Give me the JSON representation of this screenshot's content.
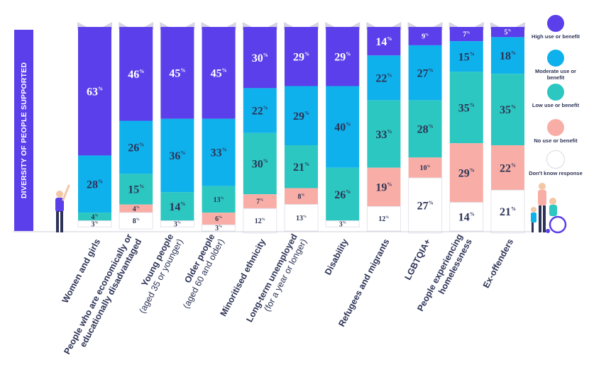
{
  "title": "DIVERSITY OF PEOPLE SUPPORTED",
  "colors": {
    "high": "#5b3fea",
    "moderate": "#0fb1ec",
    "low": "#2cc7c0",
    "no": "#f8aea6",
    "dontknow": "#ffffff",
    "cap": "#d6d3e4",
    "label": "#2d3356"
  },
  "legend": [
    {
      "key": "high",
      "label": "High use or benefit"
    },
    {
      "key": "moderate",
      "label": "Moderate use or benefit"
    },
    {
      "key": "low",
      "label": "Low use or benefit"
    },
    {
      "key": "no",
      "label": "No use or benefit"
    },
    {
      "key": "dontknow",
      "label": "Don't know response"
    }
  ],
  "chart_data": {
    "type": "bar",
    "stacked": true,
    "percent": true,
    "categories": [
      "Women and girls",
      "People who are economically or educationally disadvantaged",
      "Young people (aged 35 or younger)",
      "Older people (aged 60 and older)",
      "Minoritised ethnicity",
      "Long-term unemployed (for a year or longer)",
      "Disability",
      "Refugees and migrants",
      "LGBTQIA+",
      "People experiencing homelessness",
      "Ex-offenders"
    ],
    "category_lines": [
      [
        {
          "t": "Women and girls",
          "bold": true
        }
      ],
      [
        {
          "t": "People who are economically or",
          "bold": true
        },
        {
          "t": "educationally disadvantaged",
          "bold": true
        }
      ],
      [
        {
          "t": "Young people",
          "bold": true
        },
        {
          "t": "(aged 35 or younger)",
          "bold": false
        }
      ],
      [
        {
          "t": "Older people",
          "bold": true
        },
        {
          "t": "(aged 60 and older)",
          "bold": false
        }
      ],
      [
        {
          "t": "Minoritised ethnicity",
          "bold": true
        }
      ],
      [
        {
          "t": "Long-term unemployed",
          "bold": true
        },
        {
          "t": "(for a year or longer)",
          "bold": false
        }
      ],
      [
        {
          "t": "Disability",
          "bold": true
        }
      ],
      [
        {
          "t": "Refugees and migrants",
          "bold": true
        }
      ],
      [
        {
          "t": "LGBTQIA+",
          "bold": true
        }
      ],
      [
        {
          "t": "People experiencing",
          "bold": true
        },
        {
          "t": "homelessness",
          "bold": true
        }
      ],
      [
        {
          "t": "Ex-offenders",
          "bold": true
        }
      ]
    ],
    "series": [
      {
        "key": "high",
        "name": "High use or benefit",
        "values": [
          63,
          46,
          45,
          45,
          30,
          29,
          29,
          14,
          9,
          7,
          5
        ]
      },
      {
        "key": "moderate",
        "name": "Moderate use or benefit",
        "values": [
          28,
          26,
          36,
          33,
          22,
          29,
          40,
          22,
          27,
          15,
          18
        ]
      },
      {
        "key": "low",
        "name": "Low use or benefit",
        "values": [
          4,
          15,
          14,
          13,
          30,
          21,
          26,
          33,
          28,
          35,
          35
        ]
      },
      {
        "key": "no",
        "name": "No use or benefit",
        "values": [
          0,
          4,
          0,
          6,
          7,
          8,
          0,
          19,
          10,
          29,
          22
        ]
      },
      {
        "key": "dontknow",
        "name": "Don't know response",
        "values": [
          3,
          8,
          3,
          3,
          12,
          13,
          3,
          12,
          27,
          14,
          21
        ]
      }
    ],
    "value_suffix": "%",
    "legend_position": "right",
    "grid": false
  }
}
